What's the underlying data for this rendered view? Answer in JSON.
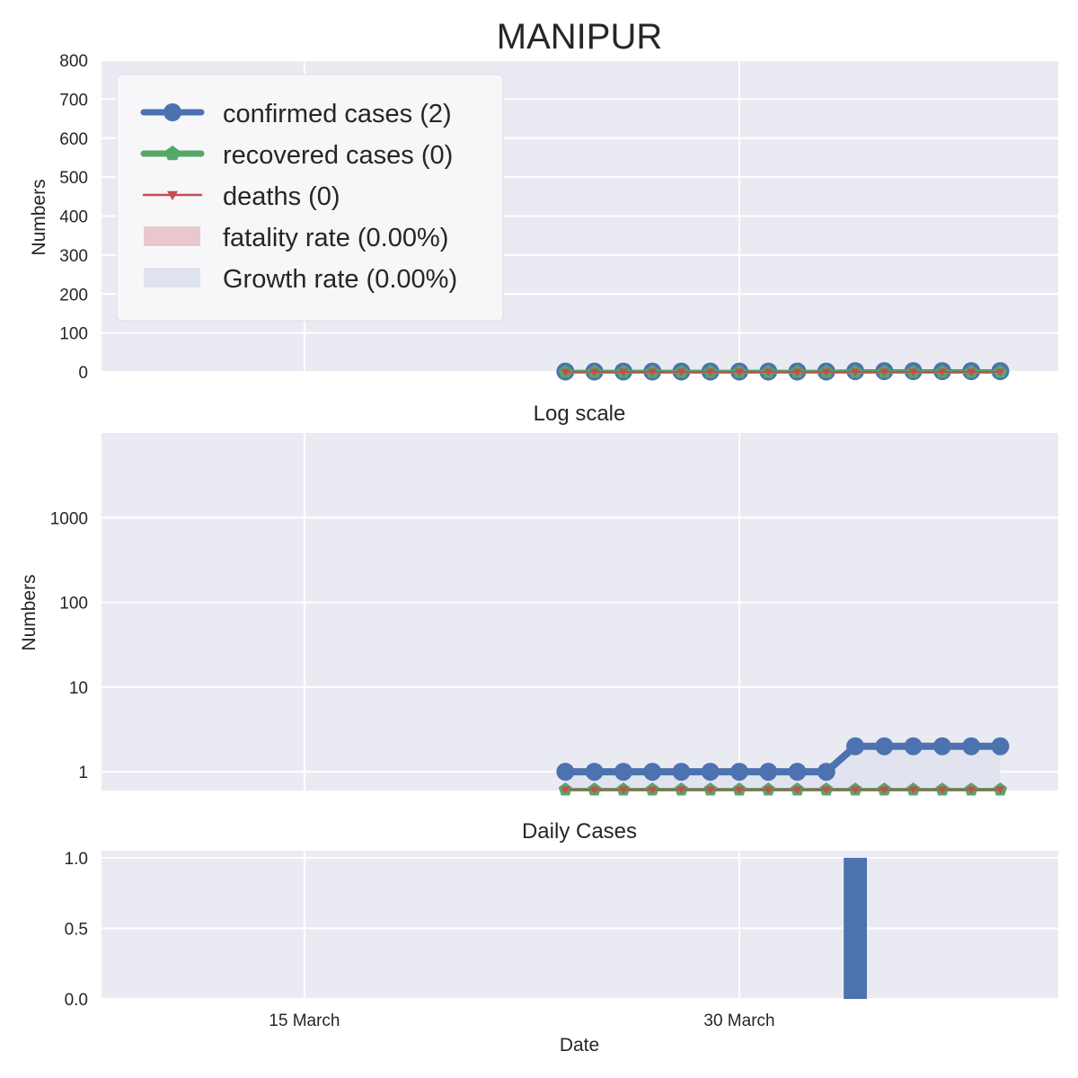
{
  "chart_data": {
    "type": "line",
    "title": "MANIPUR",
    "colors": {
      "confirmed": "#4c72b0",
      "recovered": "#55a868",
      "deaths": "#c44e52",
      "fatality_fill": "#e8c8cd",
      "growth_fill": "#dfe3ef",
      "panel_bg": "#eaeaf2",
      "grid": "#ffffff",
      "text": "#262626"
    },
    "dates": [
      "2020-03-24",
      "2020-03-25",
      "2020-03-26",
      "2020-03-27",
      "2020-03-28",
      "2020-03-29",
      "2020-03-30",
      "2020-03-31",
      "2020-04-01",
      "2020-04-02",
      "2020-04-03",
      "2020-04-04",
      "2020-04-05",
      "2020-04-06",
      "2020-04-07",
      "2020-04-08"
    ],
    "x_range": [
      "2020-03-08",
      "2020-04-10"
    ],
    "x_ticks": [
      {
        "date": "2020-03-15",
        "label": "15 March"
      },
      {
        "date": "2020-03-30",
        "label": "30 March"
      }
    ],
    "xlabel": "Date",
    "series": [
      {
        "name": "confirmed cases (2)",
        "key": "confirmed",
        "values": [
          1,
          1,
          1,
          1,
          1,
          1,
          1,
          1,
          1,
          1,
          2,
          2,
          2,
          2,
          2,
          2
        ]
      },
      {
        "name": "recovered cases (0)",
        "key": "recovered",
        "values": [
          0,
          0,
          0,
          0,
          0,
          0,
          0,
          0,
          0,
          0,
          0,
          0,
          0,
          0,
          0,
          0
        ]
      },
      {
        "name": "deaths (0)",
        "key": "deaths",
        "values": [
          0,
          0,
          0,
          0,
          0,
          0,
          0,
          0,
          0,
          0,
          0,
          0,
          0,
          0,
          0,
          0
        ]
      }
    ],
    "legend": {
      "placement": "top-left",
      "entries": [
        {
          "label": "confirmed cases (2)",
          "kind": "line",
          "key": "confirmed",
          "marker": "circle"
        },
        {
          "label": "recovered cases (0)",
          "kind": "line",
          "key": "recovered",
          "marker": "pentagon"
        },
        {
          "label": "deaths (0)",
          "kind": "line",
          "key": "deaths",
          "marker": "triangle-down"
        },
        {
          "label": "fatality rate (0.00%)",
          "kind": "patch",
          "key": "fatality_fill"
        },
        {
          "label": "Growth rate (0.00%)",
          "kind": "patch",
          "key": "growth_fill"
        }
      ]
    },
    "panels": [
      {
        "id": "linear",
        "title": "",
        "ylabel": "Numbers",
        "yscale": "linear",
        "ylim": [
          0,
          800
        ],
        "y_ticks": [
          0,
          100,
          200,
          300,
          400,
          500,
          600,
          700,
          800
        ],
        "grid": true
      },
      {
        "id": "log",
        "title": "Log scale",
        "ylabel": "Numbers",
        "yscale": "log",
        "ylim": [
          0.6,
          10000
        ],
        "y_ticks": [
          {
            "value": 1,
            "label": "1"
          },
          {
            "value": 10,
            "label": "10"
          },
          {
            "value": 100,
            "label": "100"
          },
          {
            "value": 1000,
            "label": "1000"
          }
        ],
        "grid": true
      },
      {
        "id": "daily",
        "title": "Daily Cases",
        "ylabel": "",
        "yscale": "linear",
        "type": "bar",
        "ylim": [
          0,
          1.05
        ],
        "y_ticks": [
          {
            "value": 0,
            "label": "0.0"
          },
          {
            "value": 0.5,
            "label": "0.5"
          },
          {
            "value": 1,
            "label": "1.0"
          }
        ],
        "bars": [
          {
            "date": "2020-04-03",
            "value": 1
          }
        ],
        "grid": true
      }
    ]
  }
}
